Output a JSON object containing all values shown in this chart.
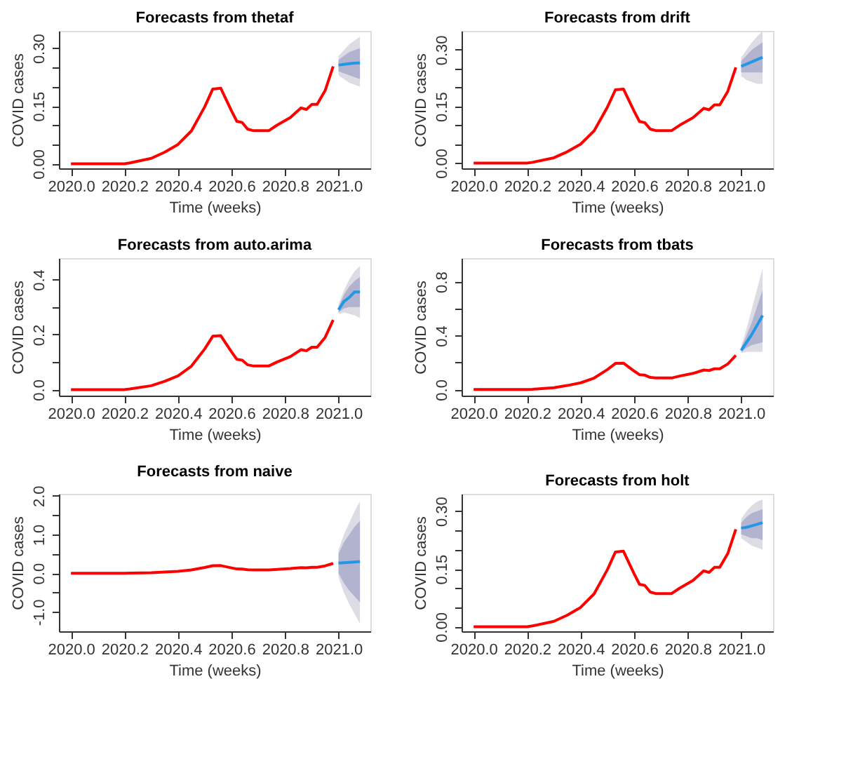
{
  "chart_data": [
    {
      "type": "line",
      "title": "Forecasts from thetaf",
      "xlabel": "Time (weeks)",
      "ylabel": "COVID cases",
      "grid": false,
      "xlim": [
        2019.955,
        2021.119
      ],
      "xticks": [
        {
          "value": 2020.0,
          "label": "2020.0"
        },
        {
          "value": 2020.2,
          "label": "2020.2"
        },
        {
          "value": 2020.4,
          "label": "2020.4"
        },
        {
          "value": 2020.6,
          "label": "2020.6"
        },
        {
          "value": 2020.8,
          "label": "2020.8"
        },
        {
          "value": 2021.0,
          "label": "2021.0"
        }
      ],
      "ylim": [
        -0.012,
        0.345
      ],
      "yticks": [
        {
          "value": 0,
          "label": "0.00"
        },
        {
          "value": 0.05,
          "label": null
        },
        {
          "value": 0.1,
          "label": null
        },
        {
          "value": 0.15,
          "label": "0.15"
        },
        {
          "value": 0.2,
          "label": null
        },
        {
          "value": 0.25,
          "label": null
        },
        {
          "value": 0.3,
          "label": "0.30"
        }
      ],
      "series": [
        {
          "type": "area",
          "color": "#dcdce4",
          "x": [
            2021.0,
            2021.02,
            2021.04,
            2021.06,
            2021.08
          ],
          "values": [
            null,
            null,
            null,
            null,
            null
          ],
          "lower": [
            0.23,
            0.22,
            0.21,
            0.205,
            0.2
          ],
          "upper": [
            0.28,
            0.295,
            0.31,
            0.32,
            0.33
          ]
        },
        {
          "type": "area",
          "color": "#b2b3cf",
          "x": [
            2021.0,
            2021.02,
            2021.04,
            2021.06,
            2021.08
          ],
          "values": [
            null,
            null,
            null,
            null,
            null
          ],
          "lower": [
            0.24,
            0.235,
            0.23,
            0.225,
            0.22
          ],
          "upper": [
            0.27,
            0.28,
            0.29,
            0.295,
            0.3
          ]
        },
        {
          "type": "line",
          "color": "#ff0000",
          "x": [
            2020.0,
            2020.1,
            2020.2,
            2020.22,
            2020.3,
            2020.35,
            2020.4,
            2020.45,
            2020.5,
            2020.53,
            2020.56,
            2020.6,
            2020.62,
            2020.64,
            2020.66,
            2020.68,
            2020.74,
            2020.77,
            2020.82,
            2020.86,
            2020.88,
            2020.9,
            2020.92,
            2020.95,
            2020.98
          ],
          "values": [
            0.0,
            0.0,
            0.0,
            0.002,
            0.014,
            0.03,
            0.05,
            0.085,
            0.148,
            0.194,
            0.196,
            0.137,
            0.11,
            0.107,
            0.09,
            0.086,
            0.086,
            0.1,
            0.12,
            0.145,
            0.141,
            0.154,
            0.154,
            0.19,
            0.253
          ]
        },
        {
          "type": "line",
          "color": "#2297e6",
          "x": [
            2021.0,
            2021.02,
            2021.04,
            2021.06,
            2021.08
          ],
          "values": [
            0.256,
            0.258,
            0.26,
            0.261,
            0.262
          ]
        }
      ]
    },
    {
      "type": "line",
      "title": "Forecasts from drift",
      "xlabel": "Time (weeks)",
      "ylabel": "COVID cases",
      "grid": false,
      "xlim": [
        2019.955,
        2021.119
      ],
      "xticks": [
        {
          "value": 2020.0,
          "label": "2020.0"
        },
        {
          "value": 2020.2,
          "label": "2020.2"
        },
        {
          "value": 2020.4,
          "label": "2020.4"
        },
        {
          "value": 2020.6,
          "label": "2020.6"
        },
        {
          "value": 2020.8,
          "label": "2020.8"
        },
        {
          "value": 2021.0,
          "label": "2021.0"
        }
      ],
      "ylim": [
        -0.014,
        0.35
      ],
      "yticks": [
        {
          "value": 0,
          "label": "0.00"
        },
        {
          "value": 0.05,
          "label": null
        },
        {
          "value": 0.1,
          "label": null
        },
        {
          "value": 0.15,
          "label": "0.15"
        },
        {
          "value": 0.2,
          "label": null
        },
        {
          "value": 0.25,
          "label": null
        },
        {
          "value": 0.3,
          "label": "0.30"
        }
      ],
      "series": [
        {
          "type": "area",
          "color": "#dcdce4",
          "x": [
            2021.0,
            2021.02,
            2021.04,
            2021.06,
            2021.08
          ],
          "values": [
            null,
            null,
            null,
            null,
            null
          ],
          "lower": [
            0.23,
            0.22,
            0.215,
            0.21,
            0.21
          ],
          "upper": [
            0.28,
            0.3,
            0.32,
            0.335,
            0.35
          ]
        },
        {
          "type": "area",
          "color": "#b2b3cf",
          "x": [
            2021.0,
            2021.02,
            2021.04,
            2021.06,
            2021.08
          ],
          "values": [
            null,
            null,
            null,
            null,
            null
          ],
          "lower": [
            0.24,
            0.24,
            0.24,
            0.24,
            0.24
          ],
          "upper": [
            0.27,
            0.285,
            0.3,
            0.31,
            0.32
          ]
        },
        {
          "type": "line",
          "color": "#ff0000",
          "x": [
            2020.0,
            2020.1,
            2020.2,
            2020.22,
            2020.3,
            2020.35,
            2020.4,
            2020.45,
            2020.5,
            2020.53,
            2020.56,
            2020.6,
            2020.62,
            2020.64,
            2020.66,
            2020.68,
            2020.74,
            2020.77,
            2020.82,
            2020.86,
            2020.88,
            2020.9,
            2020.92,
            2020.95,
            2020.98
          ],
          "values": [
            0.0,
            0.0,
            0.0,
            0.002,
            0.014,
            0.03,
            0.05,
            0.085,
            0.148,
            0.194,
            0.196,
            0.137,
            0.11,
            0.107,
            0.09,
            0.086,
            0.086,
            0.1,
            0.12,
            0.145,
            0.141,
            0.154,
            0.154,
            0.19,
            0.253
          ]
        },
        {
          "type": "line",
          "color": "#2297e6",
          "x": [
            2021.0,
            2021.02,
            2021.04,
            2021.06,
            2021.08
          ],
          "values": [
            0.256,
            0.262,
            0.268,
            0.274,
            0.28
          ]
        }
      ]
    },
    {
      "type": "line",
      "title": "Forecasts from auto.arima",
      "xlabel": "Time (weeks)",
      "ylabel": "COVID cases",
      "grid": false,
      "xlim": [
        2019.955,
        2021.119
      ],
      "xticks": [
        {
          "value": 2020.0,
          "label": "2020.0"
        },
        {
          "value": 2020.2,
          "label": "2020.2"
        },
        {
          "value": 2020.4,
          "label": "2020.4"
        },
        {
          "value": 2020.6,
          "label": "2020.6"
        },
        {
          "value": 2020.8,
          "label": "2020.8"
        },
        {
          "value": 2021.0,
          "label": "2021.0"
        }
      ],
      "ylim": [
        -0.022,
        0.478
      ],
      "yticks": [
        {
          "value": 0,
          "label": "0.0"
        },
        {
          "value": 0.1,
          "label": null
        },
        {
          "value": 0.2,
          "label": "0.2"
        },
        {
          "value": 0.3,
          "label": null
        },
        {
          "value": 0.4,
          "label": "0.4"
        }
      ],
      "series": [
        {
          "type": "area",
          "color": "#dcdce4",
          "x": [
            2021.0,
            2021.02,
            2021.04,
            2021.06,
            2021.08
          ],
          "values": [
            null,
            null,
            null,
            null,
            null
          ],
          "lower": [
            0.275,
            0.28,
            0.275,
            0.27,
            0.26
          ],
          "upper": [
            0.31,
            0.36,
            0.4,
            0.43,
            0.45
          ]
        },
        {
          "type": "area",
          "color": "#b2b3cf",
          "x": [
            2021.0,
            2021.02,
            2021.04,
            2021.06,
            2021.08
          ],
          "values": [
            null,
            null,
            null,
            null,
            null
          ],
          "lower": [
            0.28,
            0.295,
            0.3,
            0.3,
            0.3
          ],
          "upper": [
            0.3,
            0.345,
            0.375,
            0.395,
            0.41
          ]
        },
        {
          "type": "line",
          "color": "#ff0000",
          "x": [
            2020.0,
            2020.1,
            2020.2,
            2020.22,
            2020.3,
            2020.35,
            2020.4,
            2020.45,
            2020.5,
            2020.53,
            2020.56,
            2020.6,
            2020.62,
            2020.64,
            2020.66,
            2020.68,
            2020.74,
            2020.77,
            2020.82,
            2020.86,
            2020.88,
            2020.9,
            2020.92,
            2020.95,
            2020.98
          ],
          "values": [
            0.0,
            0.0,
            0.0,
            0.002,
            0.014,
            0.03,
            0.05,
            0.085,
            0.148,
            0.194,
            0.196,
            0.137,
            0.11,
            0.107,
            0.09,
            0.086,
            0.086,
            0.1,
            0.12,
            0.145,
            0.141,
            0.154,
            0.154,
            0.19,
            0.253
          ]
        },
        {
          "type": "line",
          "color": "#2297e6",
          "x": [
            2021.0,
            2021.02,
            2021.04,
            2021.06,
            2021.08
          ],
          "values": [
            0.29,
            0.32,
            0.335,
            0.355,
            0.355
          ]
        }
      ]
    },
    {
      "type": "line",
      "title": "Forecasts from tbats",
      "xlabel": "Time (weeks)",
      "ylabel": "COVID cases",
      "grid": false,
      "xlim": [
        2019.955,
        2021.119
      ],
      "xticks": [
        {
          "value": 2020.0,
          "label": "2020.0"
        },
        {
          "value": 2020.2,
          "label": "2020.2"
        },
        {
          "value": 2020.4,
          "label": "2020.4"
        },
        {
          "value": 2020.6,
          "label": "2020.6"
        },
        {
          "value": 2020.8,
          "label": "2020.8"
        },
        {
          "value": 2021.0,
          "label": "2021.0"
        }
      ],
      "ylim": [
        -0.045,
        0.975
      ],
      "yticks": [
        {
          "value": 0,
          "label": "0.0"
        },
        {
          "value": 0.2,
          "label": null
        },
        {
          "value": 0.4,
          "label": "0.4"
        },
        {
          "value": 0.6,
          "label": null
        },
        {
          "value": 0.8,
          "label": "0.8"
        }
      ],
      "series": [
        {
          "type": "area",
          "color": "#dcdce4",
          "x": [
            2021.0,
            2021.02,
            2021.04,
            2021.06,
            2021.08
          ],
          "values": [
            null,
            null,
            null,
            null,
            null
          ],
          "lower": [
            0.27,
            0.28,
            0.28,
            0.28,
            0.28
          ],
          "upper": [
            0.32,
            0.45,
            0.6,
            0.75,
            0.9
          ]
        },
        {
          "type": "area",
          "color": "#b2b3cf",
          "x": [
            2021.0,
            2021.02,
            2021.04,
            2021.06,
            2021.08
          ],
          "values": [
            null,
            null,
            null,
            null,
            null
          ],
          "lower": [
            0.28,
            0.31,
            0.33,
            0.34,
            0.35
          ],
          "upper": [
            0.31,
            0.4,
            0.5,
            0.62,
            0.74
          ]
        },
        {
          "type": "line",
          "color": "#ff0000",
          "x": [
            2020.0,
            2020.1,
            2020.2,
            2020.22,
            2020.3,
            2020.35,
            2020.4,
            2020.45,
            2020.5,
            2020.53,
            2020.56,
            2020.6,
            2020.62,
            2020.64,
            2020.66,
            2020.68,
            2020.74,
            2020.77,
            2020.82,
            2020.86,
            2020.88,
            2020.9,
            2020.92,
            2020.95,
            2020.98
          ],
          "values": [
            0.0,
            0.0,
            0.0,
            0.002,
            0.014,
            0.03,
            0.05,
            0.085,
            0.148,
            0.194,
            0.196,
            0.137,
            0.11,
            0.107,
            0.09,
            0.086,
            0.086,
            0.1,
            0.12,
            0.145,
            0.141,
            0.154,
            0.154,
            0.19,
            0.253
          ]
        },
        {
          "type": "line",
          "color": "#2297e6",
          "x": [
            2021.0,
            2021.02,
            2021.04,
            2021.06,
            2021.08
          ],
          "values": [
            0.29,
            0.35,
            0.41,
            0.48,
            0.55
          ]
        }
      ]
    },
    {
      "type": "line",
      "title": "Forecasts from naive",
      "xlabel": "Time (weeks)",
      "ylabel": "COVID cases",
      "grid": false,
      "xlim": [
        2019.955,
        2021.119
      ],
      "xticks": [
        {
          "value": 2020.0,
          "label": "2020.0"
        },
        {
          "value": 2020.2,
          "label": "2020.2"
        },
        {
          "value": 2020.4,
          "label": "2020.4"
        },
        {
          "value": 2020.6,
          "label": "2020.6"
        },
        {
          "value": 2020.8,
          "label": "2020.8"
        },
        {
          "value": 2021.0,
          "label": "2021.0"
        }
      ],
      "ylim": [
        -1.5,
        2.05
      ],
      "yticks": [
        {
          "value": -1.0,
          "label": "-1.0"
        },
        {
          "value": -0.5,
          "label": null
        },
        {
          "value": 0,
          "label": "0.0"
        },
        {
          "value": 0.5,
          "label": null
        },
        {
          "value": 1.0,
          "label": "1.0"
        },
        {
          "value": 1.5,
          "label": null
        },
        {
          "value": 2.0,
          "label": "2.0"
        }
      ],
      "series": [
        {
          "type": "area",
          "color": "#dcdce4",
          "x": [
            2021.0,
            2021.02,
            2021.04,
            2021.06,
            2021.08
          ],
          "values": [
            null,
            null,
            null,
            null,
            null
          ],
          "lower": [
            -0.1,
            -0.5,
            -0.8,
            -1.05,
            -1.3
          ],
          "upper": [
            0.6,
            1.0,
            1.3,
            1.6,
            1.85
          ]
        },
        {
          "type": "area",
          "color": "#b2b3cf",
          "x": [
            2021.0,
            2021.02,
            2021.04,
            2021.06,
            2021.08
          ],
          "values": [
            null,
            null,
            null,
            null,
            null
          ],
          "lower": [
            0.0,
            -0.25,
            -0.45,
            -0.6,
            -0.75
          ],
          "upper": [
            0.5,
            0.8,
            1.0,
            1.2,
            1.35
          ]
        },
        {
          "type": "line",
          "color": "#ff0000",
          "x": [
            2020.0,
            2020.1,
            2020.2,
            2020.22,
            2020.3,
            2020.35,
            2020.4,
            2020.45,
            2020.5,
            2020.53,
            2020.56,
            2020.6,
            2020.62,
            2020.64,
            2020.66,
            2020.68,
            2020.74,
            2020.77,
            2020.82,
            2020.86,
            2020.88,
            2020.9,
            2020.92,
            2020.95,
            2020.98
          ],
          "values": [
            0.0,
            0.0,
            0.0,
            0.002,
            0.014,
            0.03,
            0.05,
            0.085,
            0.148,
            0.194,
            0.196,
            0.137,
            0.11,
            0.107,
            0.09,
            0.086,
            0.086,
            0.1,
            0.12,
            0.145,
            0.141,
            0.154,
            0.154,
            0.19,
            0.253
          ]
        },
        {
          "type": "line",
          "color": "#2297e6",
          "x": [
            2021.0,
            2021.02,
            2021.04,
            2021.06,
            2021.08
          ],
          "values": [
            0.26,
            0.27,
            0.28,
            0.29,
            0.3
          ]
        }
      ]
    },
    {
      "type": "line",
      "title": "Forecasts from holt",
      "xlabel": "Time (weeks)",
      "ylabel": "COVID cases",
      "grid": false,
      "xlim": [
        2019.955,
        2021.119
      ],
      "xticks": [
        {
          "value": 2020.0,
          "label": "2020.0"
        },
        {
          "value": 2020.2,
          "label": "2020.2"
        },
        {
          "value": 2020.4,
          "label": "2020.4"
        },
        {
          "value": 2020.6,
          "label": "2020.6"
        },
        {
          "value": 2020.8,
          "label": "2020.8"
        },
        {
          "value": 2021.0,
          "label": "2021.0"
        }
      ],
      "ylim": [
        -0.012,
        0.345
      ],
      "yticks": [
        {
          "value": 0,
          "label": "0.00"
        },
        {
          "value": 0.05,
          "label": null
        },
        {
          "value": 0.1,
          "label": null
        },
        {
          "value": 0.15,
          "label": "0.15"
        },
        {
          "value": 0.2,
          "label": null
        },
        {
          "value": 0.25,
          "label": null
        },
        {
          "value": 0.3,
          "label": "0.30"
        }
      ],
      "series": [
        {
          "type": "area",
          "color": "#dcdce4",
          "x": [
            2021.0,
            2021.02,
            2021.04,
            2021.06,
            2021.08
          ],
          "values": [
            null,
            null,
            null,
            null,
            null
          ],
          "lower": [
            0.23,
            0.22,
            0.21,
            0.205,
            0.2
          ],
          "upper": [
            0.28,
            0.3,
            0.315,
            0.325,
            0.33
          ]
        },
        {
          "type": "area",
          "color": "#b2b3cf",
          "x": [
            2021.0,
            2021.02,
            2021.04,
            2021.06,
            2021.08
          ],
          "values": [
            null,
            null,
            null,
            null,
            null
          ],
          "lower": [
            0.24,
            0.235,
            0.23,
            0.23,
            0.225
          ],
          "upper": [
            0.27,
            0.285,
            0.295,
            0.3,
            0.305
          ]
        },
        {
          "type": "line",
          "color": "#ff0000",
          "x": [
            2020.0,
            2020.1,
            2020.2,
            2020.22,
            2020.3,
            2020.35,
            2020.4,
            2020.45,
            2020.5,
            2020.53,
            2020.56,
            2020.6,
            2020.62,
            2020.64,
            2020.66,
            2020.68,
            2020.74,
            2020.77,
            2020.82,
            2020.86,
            2020.88,
            2020.9,
            2020.92,
            2020.95,
            2020.98
          ],
          "values": [
            0.0,
            0.0,
            0.0,
            0.002,
            0.014,
            0.03,
            0.05,
            0.085,
            0.148,
            0.194,
            0.196,
            0.137,
            0.11,
            0.107,
            0.09,
            0.086,
            0.086,
            0.1,
            0.12,
            0.145,
            0.141,
            0.154,
            0.154,
            0.19,
            0.253
          ]
        },
        {
          "type": "line",
          "color": "#2297e6",
          "x": [
            2021.0,
            2021.02,
            2021.04,
            2021.06,
            2021.08
          ],
          "values": [
            0.256,
            0.258,
            0.262,
            0.266,
            0.27
          ]
        }
      ]
    }
  ]
}
